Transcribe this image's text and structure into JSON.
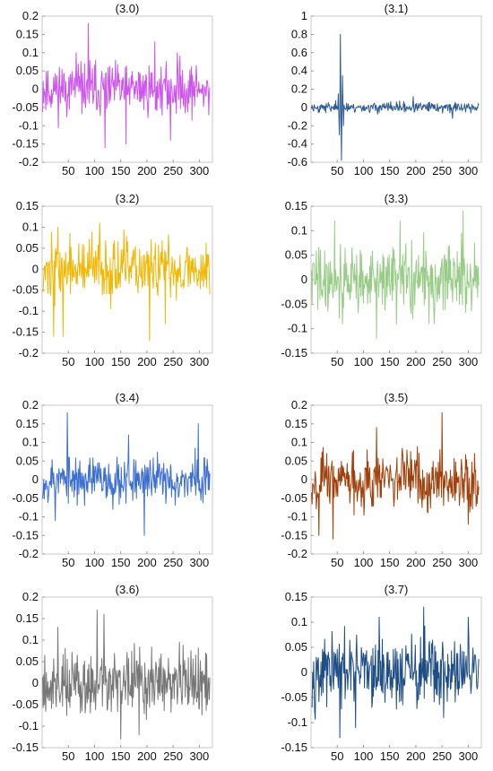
{
  "chart_data": [
    {
      "type": "line",
      "title": "(3.0)",
      "xlim": [
        0,
        325
      ],
      "ylim": [
        -0.2,
        0.2
      ],
      "xticks": [
        50,
        100,
        150,
        200,
        250,
        300
      ],
      "yticks": [
        -0.2,
        -0.15,
        -0.1,
        -0.05,
        0,
        0.05,
        0.1,
        0.15,
        0.2
      ],
      "ytick_labels": [
        "-0.2",
        "-0.15",
        "-0.1",
        "-0.05",
        "0",
        "0.05",
        "0.1",
        "0.15",
        "0.2"
      ],
      "grid": false,
      "color": "#cc55ee",
      "n": 320,
      "amplitude": 0.05,
      "seed": 11,
      "spikes": [
        {
          "x": 88,
          "y": 0.18
        },
        {
          "x": 120,
          "y": -0.16
        },
        {
          "x": 160,
          "y": -0.15
        },
        {
          "x": 215,
          "y": 0.13
        },
        {
          "x": 245,
          "y": -0.14
        },
        {
          "x": 258,
          "y": 0.1
        },
        {
          "x": 65,
          "y": 0.1
        }
      ]
    },
    {
      "type": "line",
      "title": "(3.1)",
      "xlim": [
        0,
        325
      ],
      "ylim": [
        -0.6,
        1
      ],
      "xticks": [
        50,
        100,
        150,
        200,
        250,
        300
      ],
      "yticks": [
        -0.6,
        -0.4,
        -0.2,
        0,
        0.2,
        0.4,
        0.6,
        0.8,
        1
      ],
      "ytick_labels": [
        "-0.6",
        "-0.4",
        "-0.2",
        "0",
        "0.2",
        "0.4",
        "0.6",
        "0.8",
        "1"
      ],
      "grid": false,
      "color": "#2e5b92",
      "n": 320,
      "amplitude": 0.04,
      "seed": 23,
      "spikes": [
        {
          "x": 52,
          "y": 0.15
        },
        {
          "x": 54,
          "y": -0.3
        },
        {
          "x": 56,
          "y": 0.8
        },
        {
          "x": 58,
          "y": -0.58
        },
        {
          "x": 60,
          "y": 0.35
        },
        {
          "x": 62,
          "y": -0.2
        },
        {
          "x": 270,
          "y": -0.12
        },
        {
          "x": 195,
          "y": 0.12
        }
      ]
    },
    {
      "type": "line",
      "title": "(3.2)",
      "xlim": [
        0,
        325
      ],
      "ylim": [
        -0.2,
        0.15
      ],
      "xticks": [
        50,
        100,
        150,
        200,
        250,
        300
      ],
      "yticks": [
        -0.2,
        -0.15,
        -0.1,
        -0.05,
        0,
        0.05,
        0.1,
        0.15
      ],
      "ytick_labels": [
        "-0.2",
        "-0.15",
        "-0.1",
        "-0.05",
        "0",
        "0.05",
        "0.1",
        "0.15"
      ],
      "grid": false,
      "color": "#f2b705",
      "n": 320,
      "amplitude": 0.05,
      "seed": 37,
      "spikes": [
        {
          "x": 22,
          "y": -0.16
        },
        {
          "x": 40,
          "y": -0.16
        },
        {
          "x": 205,
          "y": -0.17
        },
        {
          "x": 110,
          "y": 0.11
        },
        {
          "x": 235,
          "y": -0.13
        },
        {
          "x": 30,
          "y": 0.1
        }
      ]
    },
    {
      "type": "line",
      "title": "(3.3)",
      "xlim": [
        0,
        325
      ],
      "ylim": [
        -0.15,
        0.15
      ],
      "xticks": [
        50,
        100,
        150,
        200,
        250,
        300
      ],
      "yticks": [
        -0.15,
        -0.1,
        -0.05,
        0,
        0.05,
        0.1,
        0.15
      ],
      "ytick_labels": [
        "-0.15",
        "-0.1",
        "-0.05",
        "0",
        "0.05",
        "0.1",
        "0.15"
      ],
      "grid": false,
      "color": "#99cc88",
      "n": 320,
      "amplitude": 0.05,
      "seed": 41,
      "spikes": [
        {
          "x": 290,
          "y": 0.14
        },
        {
          "x": 125,
          "y": -0.12
        },
        {
          "x": 45,
          "y": 0.12
        },
        {
          "x": 170,
          "y": 0.12
        },
        {
          "x": 60,
          "y": -0.09
        }
      ]
    },
    {
      "type": "line",
      "title": "(3.4)",
      "xlim": [
        0,
        325
      ],
      "ylim": [
        -0.2,
        0.2
      ],
      "xticks": [
        50,
        100,
        150,
        200,
        250,
        300
      ],
      "yticks": [
        -0.2,
        -0.15,
        -0.1,
        -0.05,
        0,
        0.05,
        0.1,
        0.15,
        0.2
      ],
      "ytick_labels": [
        "-0.2",
        "-0.15",
        "-0.1",
        "-0.05",
        "0",
        "0.05",
        "0.1",
        "0.15",
        "0.2"
      ],
      "grid": false,
      "color": "#3d6fd1",
      "n": 320,
      "amplitude": 0.045,
      "seed": 53,
      "spikes": [
        {
          "x": 48,
          "y": 0.18
        },
        {
          "x": 195,
          "y": -0.15
        },
        {
          "x": 298,
          "y": 0.15
        },
        {
          "x": 25,
          "y": -0.11
        },
        {
          "x": 165,
          "y": 0.12
        }
      ]
    },
    {
      "type": "line",
      "title": "(3.5)",
      "xlim": [
        0,
        325
      ],
      "ylim": [
        -0.2,
        0.2
      ],
      "xticks": [
        50,
        100,
        150,
        200,
        250,
        300
      ],
      "yticks": [
        -0.2,
        -0.15,
        -0.1,
        -0.05,
        0,
        0.05,
        0.1,
        0.15,
        0.2
      ],
      "ytick_labels": [
        "-0.2",
        "-0.15",
        "-0.1",
        "-0.05",
        "0",
        "0.05",
        "0.1",
        "0.15",
        "0.2"
      ],
      "grid": false,
      "color": "#a0400a",
      "n": 320,
      "amplitude": 0.055,
      "seed": 67,
      "spikes": [
        {
          "x": 250,
          "y": 0.18
        },
        {
          "x": 42,
          "y": -0.16
        },
        {
          "x": 15,
          "y": -0.15
        },
        {
          "x": 125,
          "y": 0.14
        },
        {
          "x": 300,
          "y": -0.12
        }
      ]
    },
    {
      "type": "line",
      "title": "(3.6)",
      "xlim": [
        0,
        325
      ],
      "ylim": [
        -0.15,
        0.2
      ],
      "xticks": [
        50,
        100,
        150,
        200,
        250,
        300
      ],
      "yticks": [
        -0.15,
        -0.1,
        -0.05,
        0,
        0.05,
        0.1,
        0.15,
        0.2
      ],
      "ytick_labels": [
        "-0.15",
        "-0.1",
        "-0.05",
        "0",
        "0.05",
        "0.1",
        "0.15",
        "0.2"
      ],
      "grid": false,
      "color": "#777777",
      "n": 320,
      "amplitude": 0.055,
      "seed": 79,
      "spikes": [
        {
          "x": 105,
          "y": 0.17
        },
        {
          "x": 118,
          "y": 0.16
        },
        {
          "x": 150,
          "y": -0.13
        },
        {
          "x": 30,
          "y": 0.13
        },
        {
          "x": 185,
          "y": -0.12
        }
      ]
    },
    {
      "type": "line",
      "title": "(3.7)",
      "xlim": [
        0,
        325
      ],
      "ylim": [
        -0.15,
        0.15
      ],
      "xticks": [
        50,
        100,
        150,
        200,
        250,
        300
      ],
      "yticks": [
        -0.15,
        -0.1,
        -0.05,
        0,
        0.05,
        0.1,
        0.15
      ],
      "ytick_labels": [
        "-0.15",
        "-0.1",
        "-0.05",
        "0",
        "0.05",
        "0.1",
        "0.15"
      ],
      "grid": false,
      "color": "#1f4e85",
      "n": 320,
      "amplitude": 0.05,
      "seed": 97,
      "spikes": [
        {
          "x": 215,
          "y": 0.13
        },
        {
          "x": 55,
          "y": -0.13
        },
        {
          "x": 130,
          "y": 0.11
        },
        {
          "x": 300,
          "y": 0.11
        },
        {
          "x": 85,
          "y": -0.11
        }
      ]
    }
  ]
}
